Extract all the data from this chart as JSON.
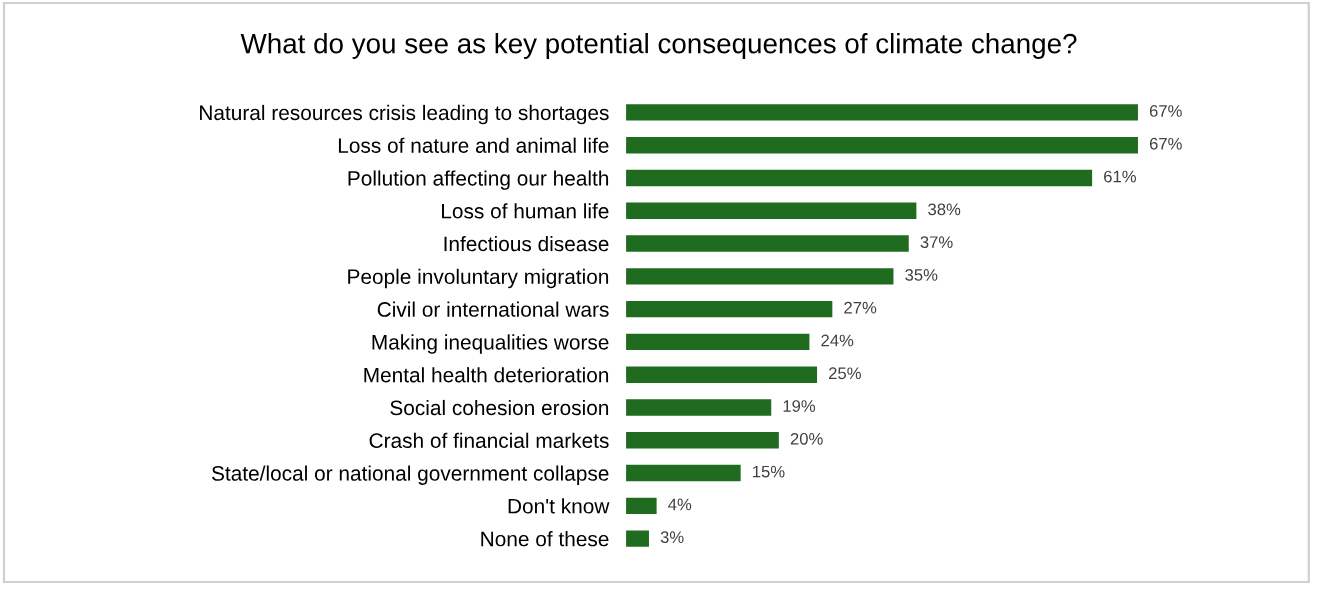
{
  "chart_data": {
    "type": "bar",
    "orientation": "horizontal",
    "title": "What do you see as key potential consequences of climate change?",
    "categories": [
      "Natural resources crisis leading to shortages",
      "Loss of nature and animal life",
      "Pollution affecting our health",
      "Loss of human life",
      "Infectious disease",
      "People involuntary migration",
      "Civil or international wars",
      "Making inequalities worse",
      "Mental health deterioration",
      "Social cohesion erosion",
      "Crash of financial markets",
      "State/local or national government collapse",
      "Don't know",
      "None of these"
    ],
    "values": [
      67,
      67,
      61,
      38,
      37,
      35,
      27,
      24,
      25,
      19,
      20,
      15,
      4,
      3
    ],
    "value_labels": [
      "67%",
      "67%",
      "61%",
      "38%",
      "37%",
      "35%",
      "27%",
      "24%",
      "25%",
      "19%",
      "20%",
      "15%",
      "4%",
      "3%"
    ],
    "color": "#1f6b1f",
    "grid": false,
    "legend": false
  }
}
